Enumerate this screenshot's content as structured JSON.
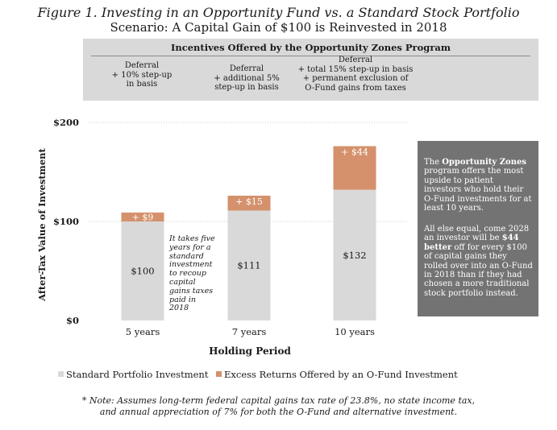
{
  "title": "Figure 1. Investing in an Opportunity Fund vs. a Standard Stock Portfolio",
  "subtitle": "Scenario: A Capital Gain of $100 is Reinvested in 2018",
  "banner": {
    "title": "Incentives Offered by the Opportunity Zones Program",
    "incentives": [
      "Deferral\n+ 10% step-up\nin basis",
      "Deferral\n+ additional 5%\nstep-up in basis",
      "Deferral\n+ total 15% step-up in basis\n+ permanent exclusion of\nO-Fund gains from taxes"
    ]
  },
  "note_five_years": "It takes five years for a standard investment to recoup capital gains taxes paid in 2018",
  "sidebar": {
    "p1_before": "The ",
    "p1_bold": "Opportunity Zones",
    "p1_after": " program offers the most upside to patient investors who hold their O-Fund investments for at least 10 years.",
    "p2_before": "All else equal, come 2028 an investor will be ",
    "p2_bold": "$44 better",
    "p2_after": " off for every $100 of capital gains they rolled over into an O-Fund in 2018 than if they had chosen a more traditional stock portfolio instead."
  },
  "legend": {
    "standard": "Standard Portfolio Investment",
    "excess": "Excess Returns Offered by an O-Fund Investment"
  },
  "footnote": "* Note: Assumes long-term federal capital gains tax rate of 23.8%, no state income tax,\nand annual appreciation of 7% for both the O-Fund and alternative investment.",
  "colors": {
    "standard": "#d9d9d9",
    "excess": "#d4916c",
    "sidebar": "#737373",
    "banner": "#d9d9d9"
  },
  "chart_data": {
    "type": "bar",
    "stacked": true,
    "categories": [
      "5 years",
      "7 years",
      "10 years"
    ],
    "series": [
      {
        "name": "Standard Portfolio Investment",
        "values": [
          100,
          111,
          132
        ],
        "labels": [
          "$100",
          "$111",
          "$132"
        ]
      },
      {
        "name": "Excess Returns Offered by an O-Fund Investment",
        "values": [
          9,
          15,
          44
        ],
        "labels": [
          "+ $9",
          "+ $15",
          "+ $44"
        ]
      }
    ],
    "xlabel": "Holding Period",
    "ylabel": "After-Tax Value of Investment",
    "yticks": [
      0,
      100,
      200
    ],
    "ytick_labels": [
      "$0",
      "$100",
      "$200"
    ],
    "ylim": [
      0,
      200
    ],
    "grid": true,
    "legend_position": "bottom"
  }
}
